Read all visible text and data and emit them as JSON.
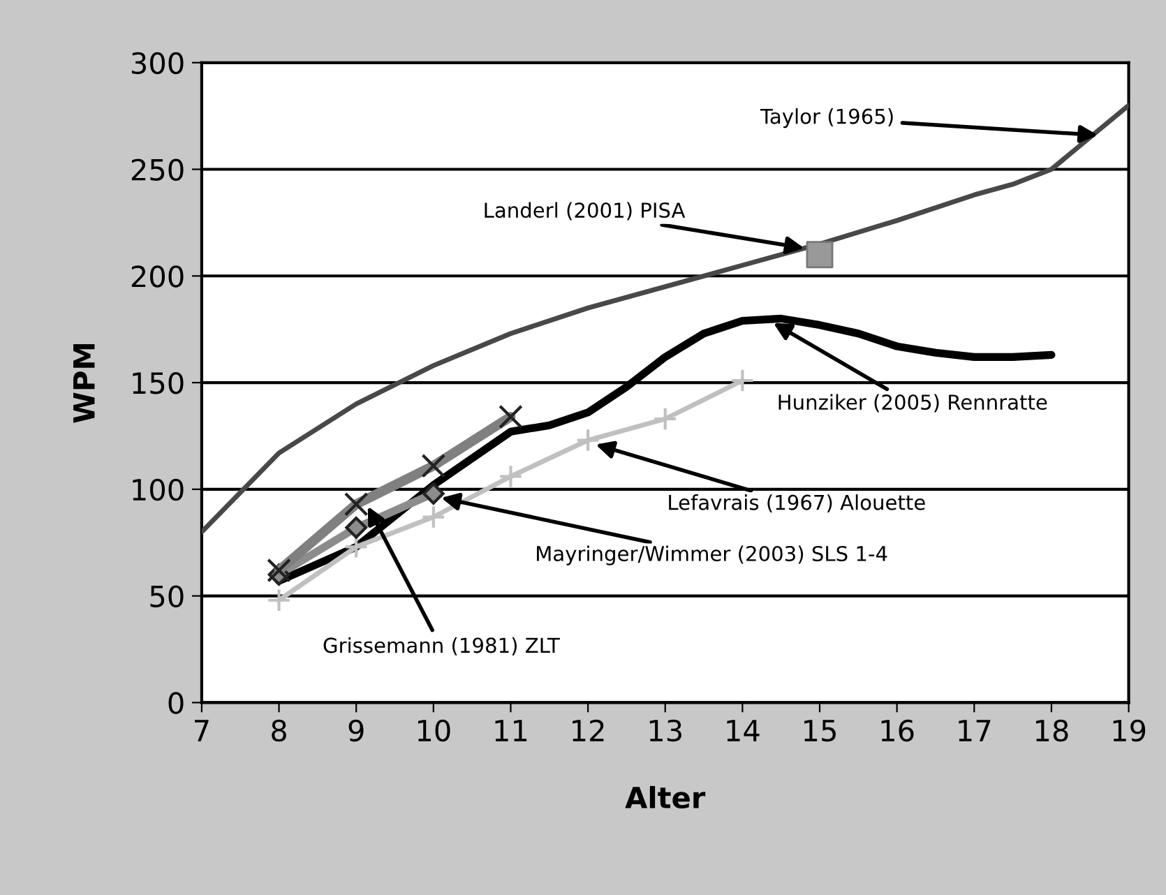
{
  "chart_data": {
    "type": "line",
    "xlabel": "Alter",
    "ylabel": "WPM",
    "xlim": [
      7,
      19
    ],
    "xticks": [
      7,
      8,
      9,
      10,
      11,
      12,
      13,
      14,
      15,
      16,
      17,
      18,
      19
    ],
    "ylim": [
      0,
      300
    ],
    "yticks": [
      0,
      50,
      100,
      150,
      200,
      250,
      300
    ],
    "grid": "y",
    "legend": false,
    "series": [
      {
        "color": "#484848",
        "marker": "none",
        "x": [
          7,
          8,
          9,
          10,
          11,
          12,
          13,
          14,
          15,
          16,
          17,
          17.5,
          18,
          18.5,
          19
        ],
        "values": [
          80,
          117,
          140,
          158,
          173,
          185,
          195,
          205,
          215,
          226,
          238,
          243,
          250,
          265,
          280
        ]
      },
      {
        "type": "scatter",
        "color": "#999999",
        "marker": "square",
        "x": [
          15
        ],
        "values": [
          210
        ]
      },
      {
        "color": "#000000",
        "marker": "none",
        "x": [
          8,
          9,
          10,
          11,
          11.5,
          12,
          12.5,
          13,
          13.5,
          14,
          14.5,
          15,
          15.5,
          16,
          16.5,
          17,
          17.5,
          18
        ],
        "values": [
          57,
          73,
          102,
          127,
          130,
          136,
          148,
          162,
          173,
          179,
          180,
          177,
          173,
          167,
          164,
          162,
          162,
          163
        ]
      },
      {
        "color": "#c0c0c0",
        "marker": "cross",
        "x": [
          8,
          9,
          10,
          11,
          12,
          13,
          14
        ],
        "values": [
          48,
          73,
          87,
          106,
          123,
          133,
          151
        ]
      },
      {
        "color": "#8c8c8c",
        "marker": "diamond",
        "x": [
          8,
          9,
          10
        ],
        "values": [
          60,
          82,
          98
        ]
      },
      {
        "color": "#808080",
        "marker": "cross",
        "x": [
          8,
          9,
          10,
          11
        ],
        "values": [
          62,
          93,
          111,
          134
        ]
      }
    ],
    "annotations": [
      {
        "text": "Taylor (1965)",
        "x": 18.6,
        "y": 266
      },
      {
        "text": "Landerl (2001) PISA",
        "x": 14.8,
        "y": 213
      },
      {
        "text": "Hunziker (2005) Rennratte",
        "x": 14.4,
        "y": 178
      },
      {
        "text": "Lefavrais (1967) Alouette",
        "x": 12.1,
        "y": 121
      },
      {
        "text": "Mayringer/Wimmer (2003) SLS 1-4",
        "x": 10.1,
        "y": 96
      },
      {
        "text": "Grissemann (1981) ZLT",
        "x": 9.15,
        "y": 92
      }
    ]
  }
}
